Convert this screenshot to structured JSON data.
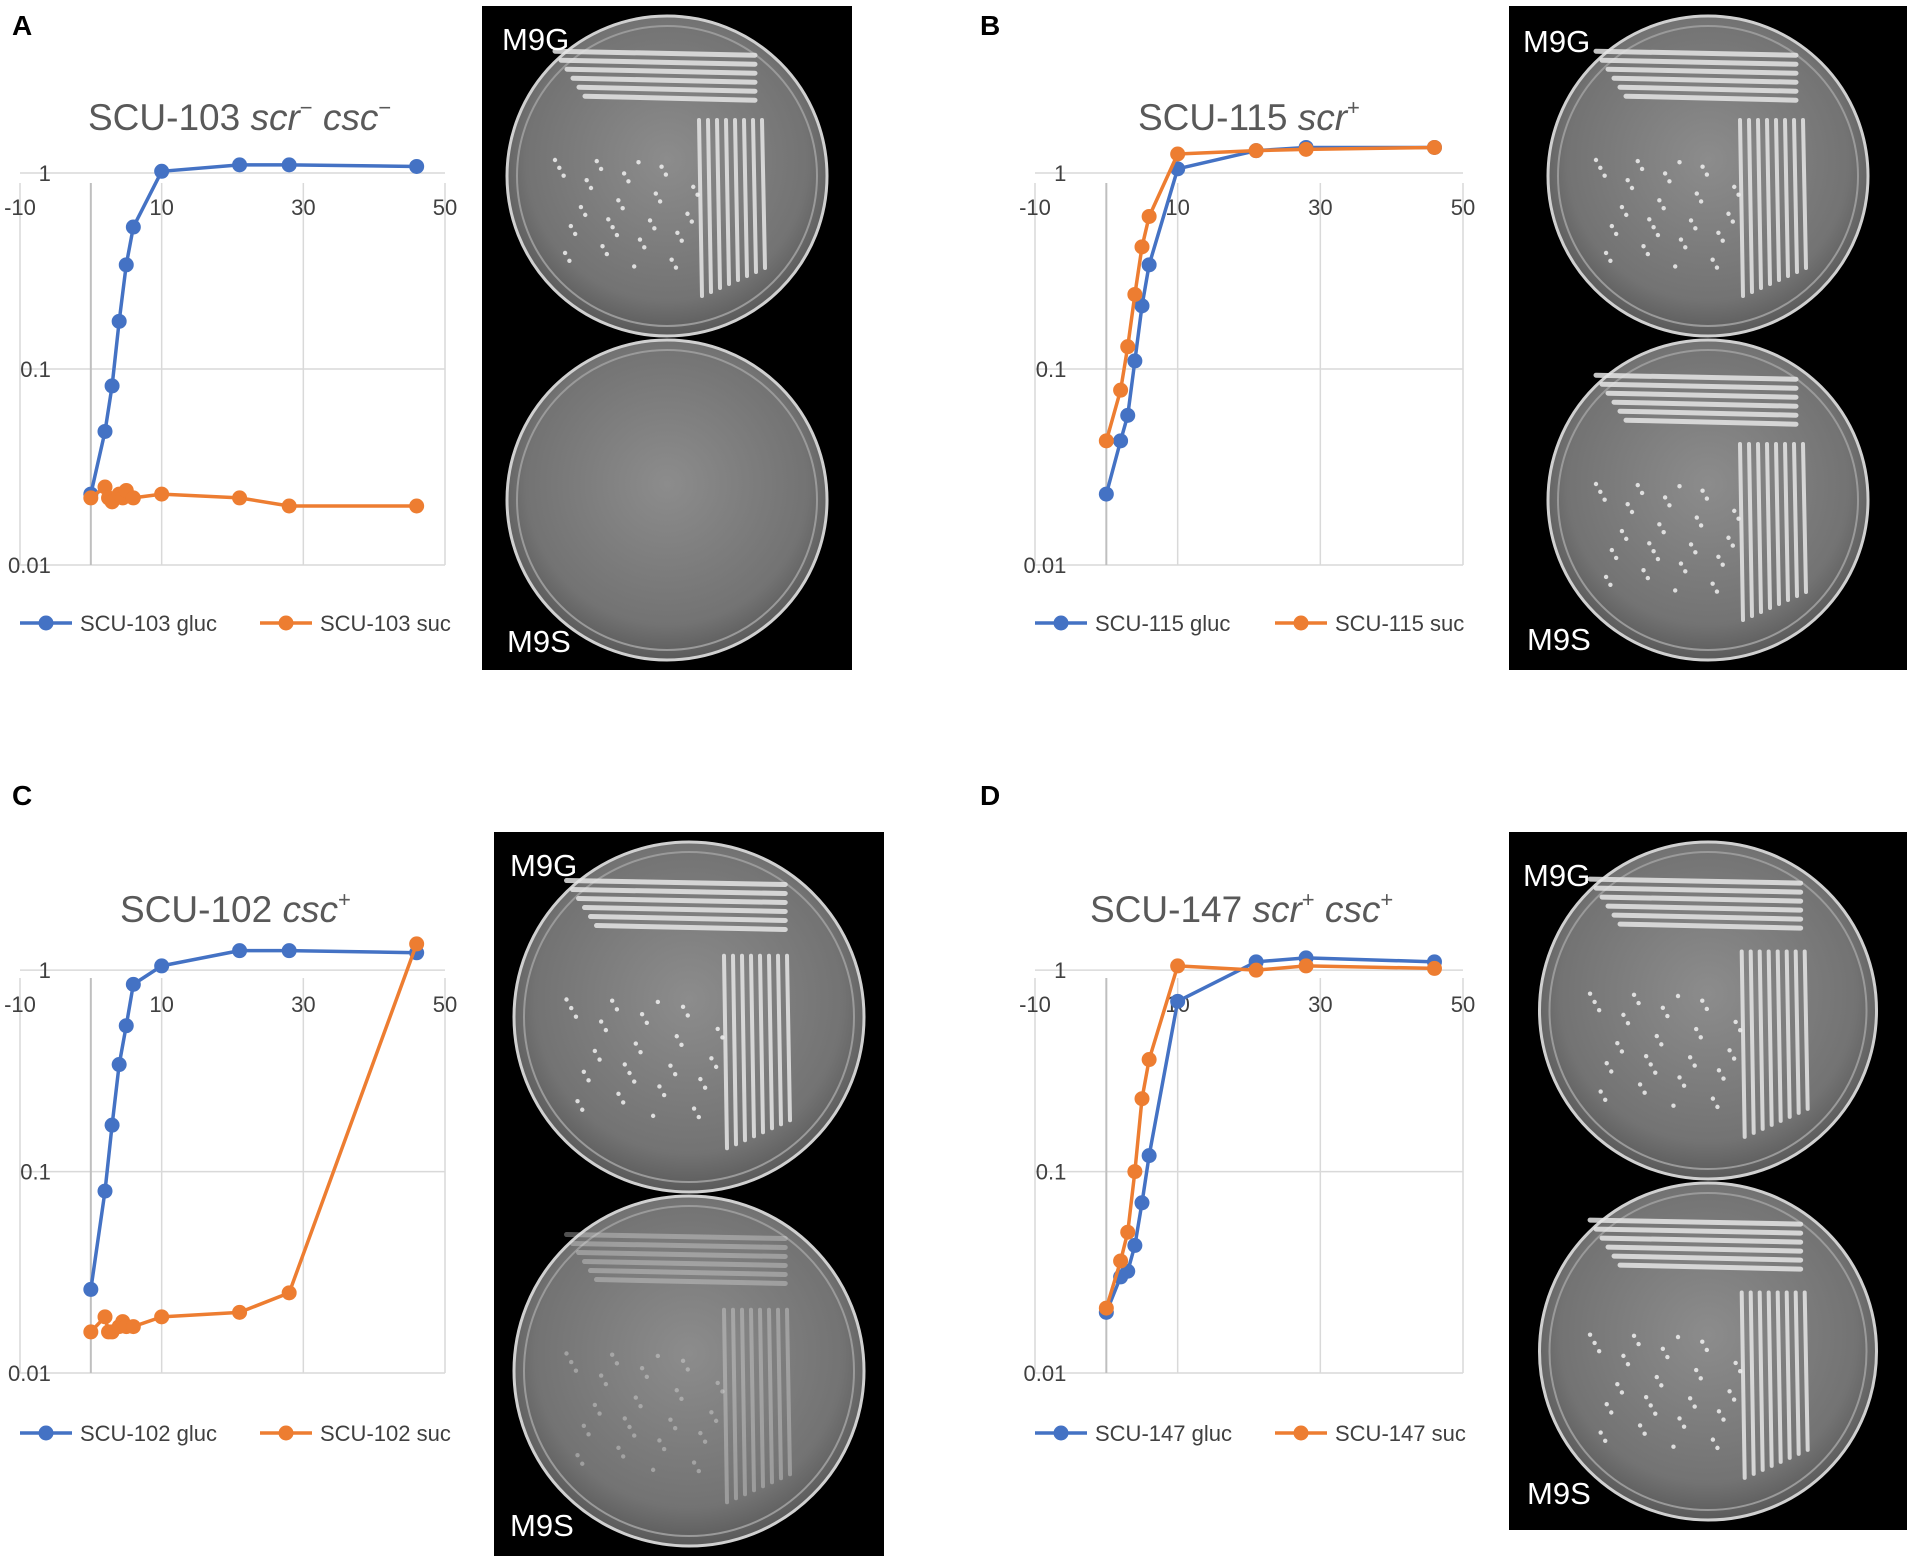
{
  "figure": {
    "panels": [
      {
        "letter": "A",
        "plate_top_label": "M9G",
        "plate_bottom_label": "M9S"
      },
      {
        "letter": "B",
        "plate_top_label": "M9G",
        "plate_bottom_label": "M9S"
      },
      {
        "letter": "C",
        "plate_top_label": "M9G",
        "plate_bottom_label": "M9S"
      },
      {
        "letter": "D",
        "plate_top_label": "M9G",
        "plate_bottom_label": "M9S"
      }
    ]
  },
  "colors": {
    "gluc": "#4472C4",
    "suc": "#ED7D31",
    "grid": "#D9D9D9",
    "axis": "#BFBFBF"
  },
  "chart_data": [
    {
      "type": "line",
      "title": {
        "strain": "SCU-103 ",
        "genotype": "scr",
        "sup": "−",
        "genotype2": " csc",
        "sup2": "−"
      },
      "xlim": [
        -10,
        50
      ],
      "xticks": [
        "-10",
        "10",
        "30",
        "50"
      ],
      "yscale": "log",
      "ylim": [
        0.01,
        2.5
      ],
      "yticks": [
        "1",
        "0.1",
        "0.01"
      ],
      "legend": "bottom",
      "series": [
        {
          "name": "SCU-103 gluc",
          "color_key": "gluc",
          "x": [
            0,
            2,
            3,
            4,
            5,
            6,
            10,
            21,
            28,
            46
          ],
          "y": [
            0.023,
            0.048,
            0.082,
            0.175,
            0.34,
            0.53,
            1.02,
            1.1,
            1.1,
            1.08
          ]
        },
        {
          "name": "SCU-103 suc",
          "color_key": "suc",
          "x": [
            0,
            2,
            2.5,
            3,
            4,
            4.5,
            5,
            6,
            10,
            21,
            28,
            46
          ],
          "y": [
            0.022,
            0.025,
            0.022,
            0.021,
            0.023,
            0.022,
            0.024,
            0.022,
            0.023,
            0.022,
            0.02,
            0.02
          ]
        }
      ]
    },
    {
      "type": "line",
      "title": {
        "strain": "SCU-115 ",
        "genotype": "scr",
        "sup": "+",
        "genotype2": "",
        "sup2": ""
      },
      "xlim": [
        -10,
        50
      ],
      "xticks": [
        "-10",
        "10",
        "30",
        "50"
      ],
      "yscale": "log",
      "ylim": [
        0.01,
        2.5
      ],
      "yticks": [
        "1",
        "0.1",
        "0.01"
      ],
      "legend": "bottom",
      "series": [
        {
          "name": "SCU-115 gluc",
          "color_key": "gluc",
          "x": [
            0,
            2,
            3,
            4,
            5,
            6,
            10,
            21,
            28,
            46
          ],
          "y": [
            0.023,
            0.043,
            0.058,
            0.11,
            0.21,
            0.34,
            1.05,
            1.3,
            1.35,
            1.35
          ]
        },
        {
          "name": "SCU-115 suc",
          "color_key": "suc",
          "x": [
            0,
            2,
            3,
            4,
            5,
            6,
            10,
            21,
            28,
            46
          ],
          "y": [
            0.043,
            0.078,
            0.13,
            0.24,
            0.42,
            0.6,
            1.25,
            1.3,
            1.32,
            1.35
          ]
        }
      ]
    },
    {
      "type": "line",
      "title": {
        "strain": "SCU-102 ",
        "genotype": "csc",
        "sup": "+",
        "genotype2": "",
        "sup2": ""
      },
      "xlim": [
        -10,
        50
      ],
      "xticks": [
        "-10",
        "10",
        "30",
        "50"
      ],
      "yscale": "log",
      "ylim": [
        0.01,
        2.5
      ],
      "yticks": [
        "1",
        "0.1",
        "0.01"
      ],
      "legend": "bottom",
      "series": [
        {
          "name": "SCU-102 gluc",
          "color_key": "gluc",
          "x": [
            0,
            2,
            3,
            4,
            5,
            6,
            10,
            21,
            28,
            46
          ],
          "y": [
            0.026,
            0.08,
            0.17,
            0.34,
            0.53,
            0.85,
            1.05,
            1.25,
            1.25,
            1.22
          ]
        },
        {
          "name": "SCU-102 suc",
          "color_key": "suc",
          "x": [
            0,
            2,
            2.5,
            3,
            4,
            4.5,
            5,
            6,
            10,
            21,
            28,
            46
          ],
          "y": [
            0.016,
            0.019,
            0.016,
            0.016,
            0.017,
            0.018,
            0.017,
            0.017,
            0.019,
            0.02,
            0.025,
            1.35
          ]
        }
      ]
    },
    {
      "type": "line",
      "title": {
        "strain": "SCU-147 ",
        "genotype": "scr",
        "sup": "+",
        "genotype2": " csc",
        "sup2": "+"
      },
      "xlim": [
        -10,
        50
      ],
      "xticks": [
        "-10",
        "10",
        "30",
        "50"
      ],
      "yscale": "log",
      "ylim": [
        0.01,
        2.5
      ],
      "yticks": [
        "1",
        "0.1",
        "0.01"
      ],
      "legend": "bottom",
      "series": [
        {
          "name": "SCU-147 gluc",
          "color_key": "gluc",
          "x": [
            0,
            2,
            3,
            4,
            5,
            6,
            10,
            21,
            28,
            46
          ],
          "y": [
            0.02,
            0.03,
            0.032,
            0.043,
            0.07,
            0.12,
            0.7,
            1.1,
            1.15,
            1.1
          ]
        },
        {
          "name": "SCU-147 suc",
          "color_key": "suc",
          "x": [
            0,
            2,
            3,
            4,
            5,
            6,
            10,
            21,
            28,
            46
          ],
          "y": [
            0.021,
            0.036,
            0.05,
            0.1,
            0.23,
            0.36,
            1.05,
            1.0,
            1.05,
            1.02
          ]
        }
      ]
    }
  ]
}
